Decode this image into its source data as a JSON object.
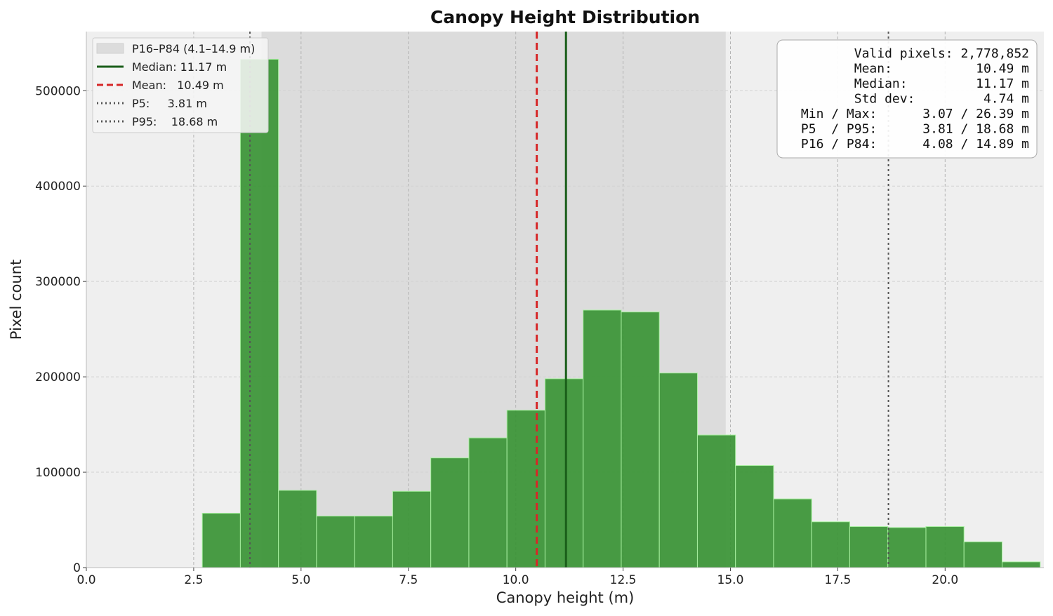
{
  "chart_data": {
    "type": "bar",
    "title": "Canopy Height Distribution",
    "xlabel": "Canopy height (m)",
    "ylabel": "Pixel count",
    "xlim": [
      0.0,
      22.3
    ],
    "ylim": [
      0,
      562000
    ],
    "xticks": [
      0.0,
      2.5,
      5.0,
      7.5,
      10.0,
      12.5,
      15.0,
      17.5,
      20.0
    ],
    "xtick_labels": [
      "0.0",
      "2.5",
      "5.0",
      "7.5",
      "10.0",
      "12.5",
      "15.0",
      "17.5",
      "20.0"
    ],
    "yticks": [
      0,
      100000,
      200000,
      300000,
      400000,
      500000
    ],
    "ytick_labels": [
      "0",
      "100000",
      "200000",
      "300000",
      "400000",
      "500000"
    ],
    "bin_start": 2.7,
    "bin_width": 0.887,
    "values": [
      57000,
      533000,
      81000,
      54000,
      54000,
      80000,
      115000,
      136000,
      165000,
      198000,
      270000,
      268000,
      204000,
      139000,
      107000,
      72000,
      48000,
      43000,
      42000,
      43000,
      27000,
      6000
    ],
    "band": {
      "x0": 4.08,
      "x1": 14.89,
      "label": "P16–P84 (4.1–14.9 m)"
    },
    "lines": [
      {
        "name": "median",
        "x": 11.17,
        "label": "Median: 11.17 m",
        "color": "#1a5e1a",
        "style": "solid"
      },
      {
        "name": "mean",
        "x": 10.49,
        "label": "Mean:   10.49 m",
        "color": "#d62728",
        "style": "dashed"
      },
      {
        "name": "p5",
        "x": 3.81,
        "label": "P5:     3.81 m",
        "color": "#555555",
        "style": "dotted"
      },
      {
        "name": "p95",
        "x": 18.68,
        "label": "P95:    18.68 m",
        "color": "#555555",
        "style": "dotted"
      }
    ],
    "grid": true,
    "legend_position": "top-left",
    "bar_color": "#3a9435",
    "bar_edge_color": "#a8f0a0",
    "band_color": "#dcdcdc",
    "background_color": "#efefef",
    "stats_box": {
      "position": "top-right",
      "lines": [
        "       Valid pixels: 2,778,852",
        "        Mean:           10.49 m",
        "        Median:         11.17 m",
        "        Std dev:         4.74 m",
        "Min / Max:      3.07 / 26.39 m",
        "P5  / P95:      3.81 / 18.68 m",
        "P16 / P84:      4.08 / 14.89 m"
      ]
    }
  }
}
